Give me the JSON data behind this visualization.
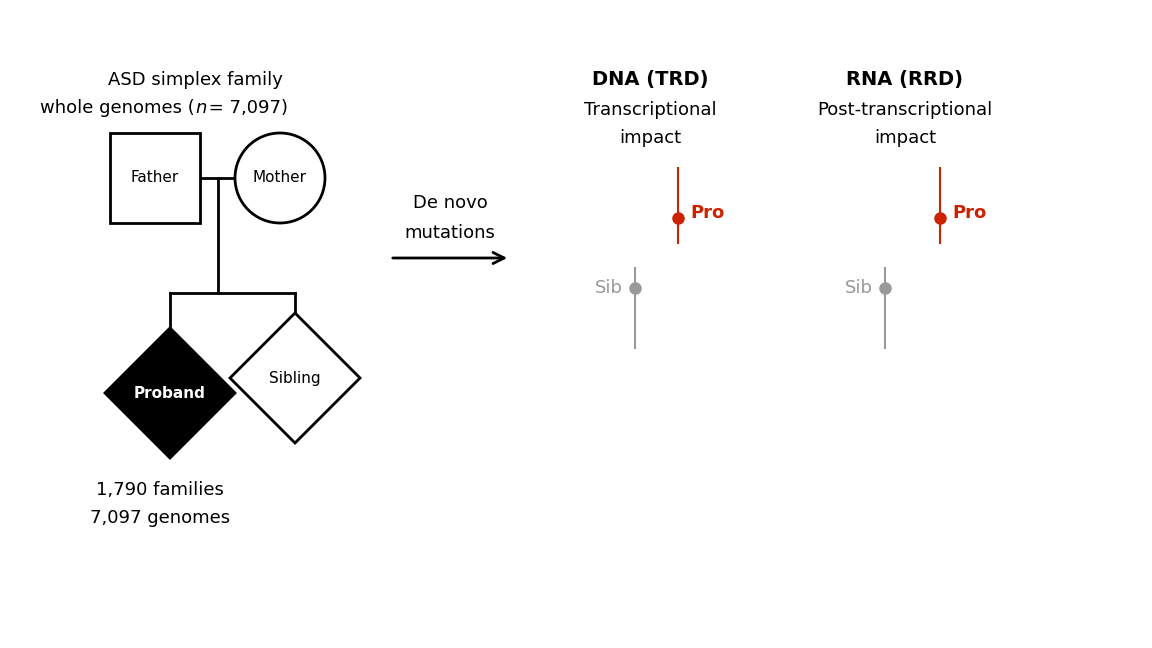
{
  "background_color": "#ffffff",
  "top_text_line1": "ASD simplex family",
  "top_text_line2_pre": "whole genomes (",
  "top_text_italic": "n",
  "top_text_line2_post": " = 7,097)",
  "father_label": "Father",
  "mother_label": "Mother",
  "proband_label": "Proband",
  "sibling_label": "Sibling",
  "bottom_text_line1": "1,790 families",
  "bottom_text_line2": "7,097 genomes",
  "arrow_text_line1": "De novo",
  "arrow_text_line2": "mutations",
  "dna_title1": "DNA (TRD)",
  "dna_title2": "Transcriptional",
  "dna_title3": "impact",
  "rna_title1": "RNA (RRD)",
  "rna_title2": "Post-transcriptional",
  "rna_title3": "impact",
  "pro_color": "#cc2200",
  "sib_color": "#999999",
  "pro_label": "Pro",
  "sib_label": "Sib",
  "fontsize_title": 14,
  "fontsize_body": 13,
  "fontsize_label": 11,
  "fontsize_tag": 13
}
